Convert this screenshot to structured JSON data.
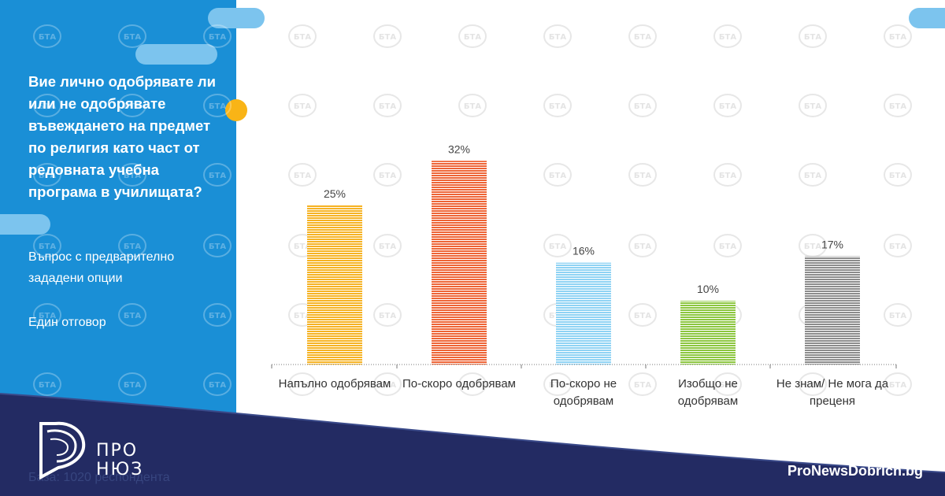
{
  "question": "Вие лично одобрявате ли или не одобрявате въвеждането на предмет по религия като част от редовната учебна програма в училищата?",
  "question_type": "Въпрос с предварително зададени опции",
  "answer_mode": "Един отговор",
  "respondents": "База: 1020 респондента",
  "site": "ProNewsDobrich.bg",
  "logo": {
    "line1": "ПРО",
    "line2": "НЮЗ",
    "watermark": "БТА"
  },
  "colors": {
    "panel": "#1a8fd6",
    "accent": "#f9b416",
    "footer": "#232b63"
  },
  "chart_data": {
    "type": "bar",
    "categories": [
      [
        "Напълно одобрявам"
      ],
      [
        "По-скоро одобрявам"
      ],
      [
        "По-скоро не",
        "одобрявам"
      ],
      [
        "Изобщо не",
        "одобрявам"
      ],
      [
        "Не знам/ Не мога да",
        "преценя"
      ]
    ],
    "values": [
      25,
      32,
      16,
      10,
      17
    ],
    "value_labels": [
      "25%",
      "32%",
      "16%",
      "10%",
      "17%"
    ],
    "bar_colors": [
      "#f6b324",
      "#ee6436",
      "#8fd3f4",
      "#8cc63f",
      "#8c8c8c"
    ],
    "ylim": [
      0,
      35
    ],
    "grid": false
  }
}
